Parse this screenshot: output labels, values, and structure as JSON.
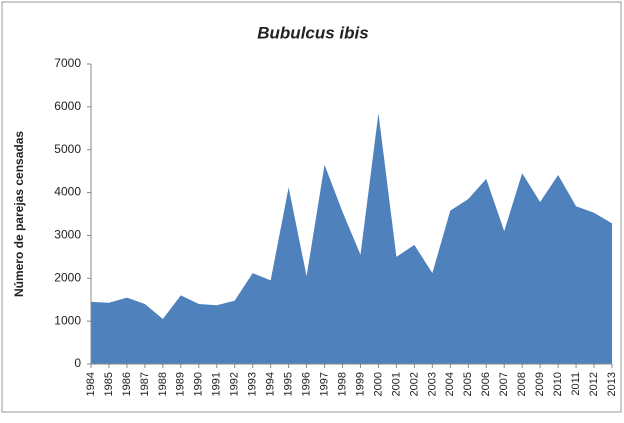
{
  "chart_data": {
    "type": "area",
    "title": "Bubulcus ibis",
    "y_label": "Número de parejas censadas",
    "categories": [
      "1984",
      "1985",
      "1986",
      "1987",
      "1988",
      "1989",
      "1990",
      "1991",
      "1992",
      "1993",
      "1994",
      "1995",
      "1996",
      "1997",
      "1998",
      "1999",
      "2000",
      "2001",
      "2002",
      "2003",
      "2004",
      "2005",
      "2006",
      "2007",
      "2008",
      "2009",
      "2010",
      "2011",
      "2012",
      "2013"
    ],
    "values": [
      1450,
      1430,
      1550,
      1400,
      1050,
      1600,
      1400,
      1370,
      1480,
      2120,
      1950,
      4120,
      2050,
      4650,
      3550,
      2550,
      5850,
      2500,
      2780,
      2120,
      3580,
      3850,
      4320,
      3100,
      4450,
      3780,
      4410,
      3680,
      3530,
      3280
    ],
    "color": "#4f81bd",
    "ylim": [
      0,
      7000
    ],
    "yticks": [
      0,
      1000,
      2000,
      3000,
      4000,
      5000,
      6000,
      7000
    ],
    "grid": false
  }
}
